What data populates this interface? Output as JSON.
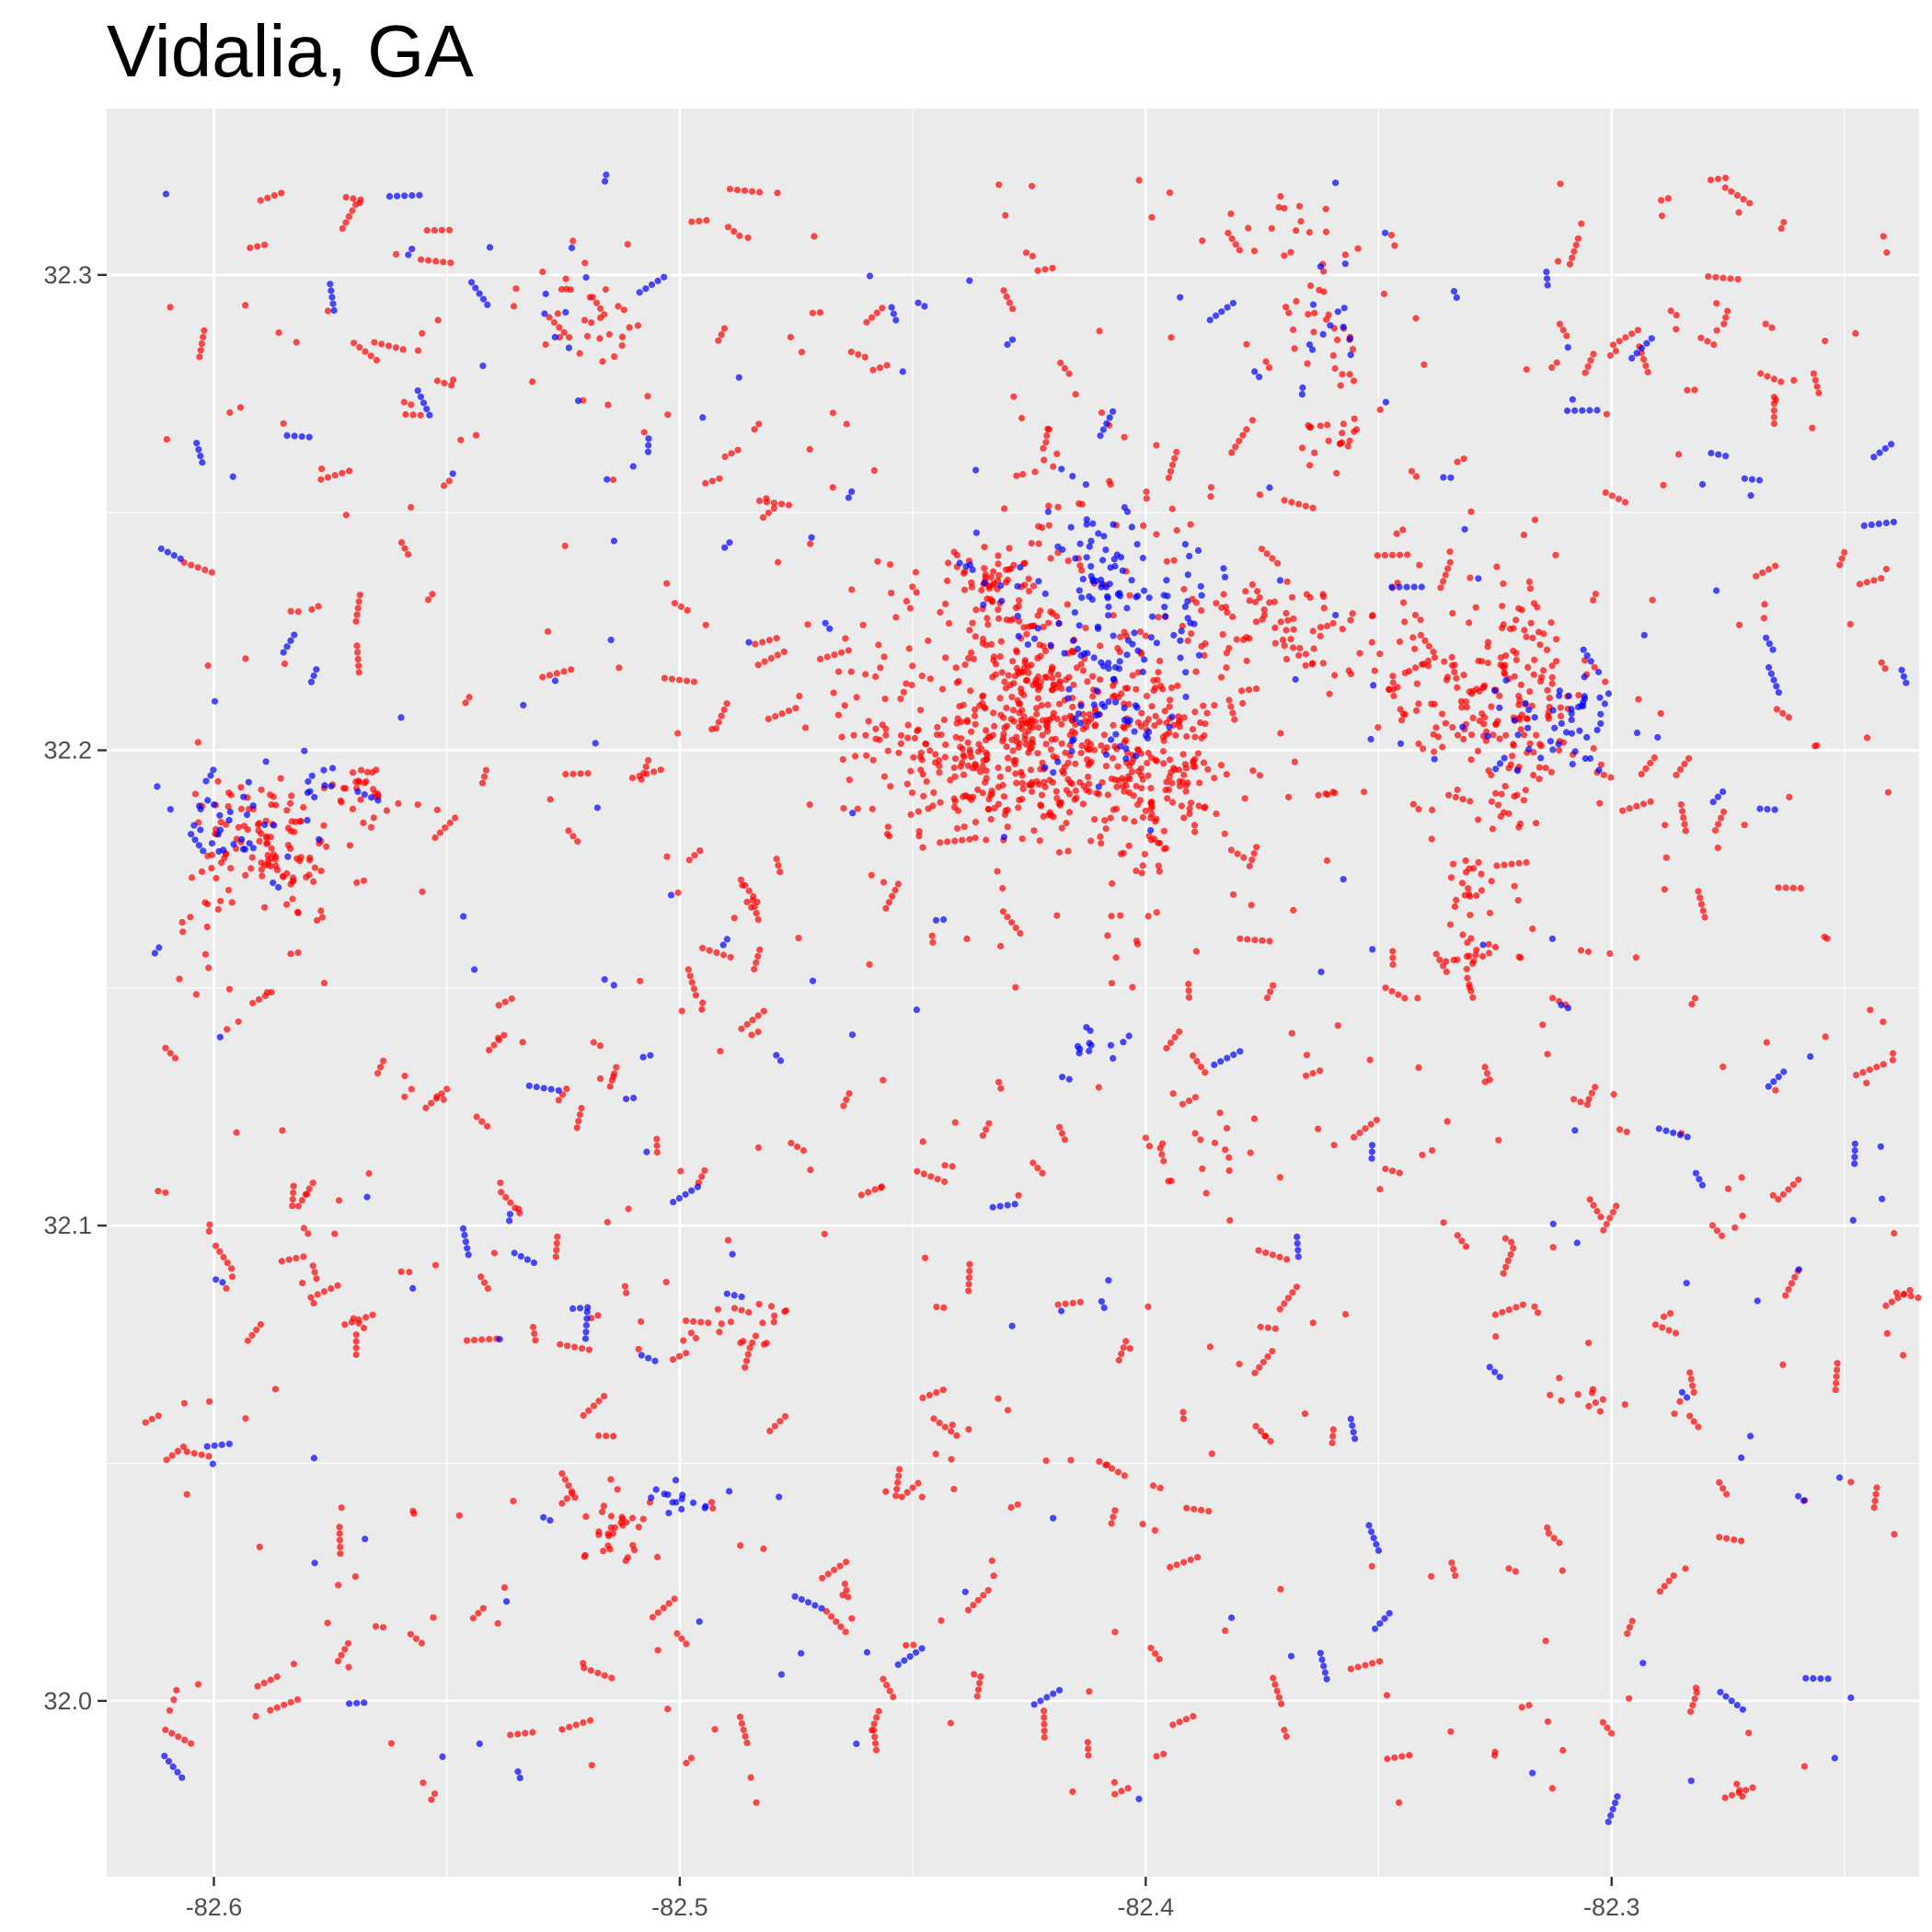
{
  "chart_data": {
    "type": "scatter",
    "title": "Vidalia, GA",
    "xlabel": "",
    "ylabel": "",
    "xlim": [
      -82.623,
      -82.234
    ],
    "ylim": [
      31.963,
      32.335
    ],
    "x_ticks": [
      -82.6,
      -82.5,
      -82.4,
      -82.3
    ],
    "x_tick_labels": [
      "-82.6",
      "-82.5",
      "-82.4",
      "-82.3"
    ],
    "y_ticks": [
      32.0,
      32.1,
      32.2,
      32.3
    ],
    "y_tick_labels": [
      "32.0",
      "32.1",
      "32.2",
      "32.3"
    ],
    "grid": true,
    "legend": "none",
    "colors": {
      "panel_background": "#ebebeb",
      "grid_major": "#ffffff",
      "tick_text": "#4d4d4d",
      "red_points": "#ff0000",
      "blue_points": "#0000ff"
    },
    "series": [
      {
        "color": "#ff0000",
        "clusters": [
          {
            "x": -82.418,
            "y": 32.203,
            "sx": 0.011,
            "sy": 0.01,
            "n": 260
          },
          {
            "x": -82.397,
            "y": 32.196,
            "sx": 0.007,
            "sy": 0.011,
            "n": 150
          },
          {
            "x": -82.435,
            "y": 32.198,
            "sx": 0.008,
            "sy": 0.008,
            "n": 130
          },
          {
            "x": -82.432,
            "y": 32.234,
            "sx": 0.007,
            "sy": 0.005,
            "n": 70
          },
          {
            "x": -82.427,
            "y": 32.22,
            "sx": 0.006,
            "sy": 0.005,
            "n": 50
          },
          {
            "x": -82.455,
            "y": 32.205,
            "sx": 0.006,
            "sy": 0.01,
            "n": 50
          },
          {
            "x": -82.41,
            "y": 32.247,
            "sx": 0.012,
            "sy": 0.012,
            "n": 40
          },
          {
            "x": -82.37,
            "y": 32.225,
            "sx": 0.016,
            "sy": 0.005,
            "n": 85
          },
          {
            "x": -82.325,
            "y": 32.21,
            "sx": 0.012,
            "sy": 0.007,
            "n": 130
          },
          {
            "x": -82.322,
            "y": 32.223,
            "sx": 0.004,
            "sy": 0.008,
            "n": 40
          },
          {
            "x": -82.322,
            "y": 32.193,
            "sx": 0.006,
            "sy": 0.006,
            "n": 30
          },
          {
            "x": -82.588,
            "y": 32.18,
            "sx": 0.006,
            "sy": 0.006,
            "n": 90
          },
          {
            "x": -82.6,
            "y": 32.178,
            "sx": 0.003,
            "sy": 0.012,
            "n": 30
          },
          {
            "x": -82.568,
            "y": 32.19,
            "sx": 0.005,
            "sy": 0.005,
            "n": 30
          },
          {
            "x": -82.513,
            "y": 32.036,
            "sx": 0.004,
            "sy": 0.004,
            "n": 30
          },
          {
            "x": -82.483,
            "y": 32.079,
            "sx": 0.004,
            "sy": 0.003,
            "n": 15
          },
          {
            "x": -82.33,
            "y": 32.171,
            "sx": 0.003,
            "sy": 0.004,
            "n": 20
          },
          {
            "x": -82.33,
            "y": 32.157,
            "sx": 0.004,
            "sy": 0.003,
            "n": 18
          },
          {
            "x": -82.363,
            "y": 32.29,
            "sx": 0.004,
            "sy": 0.006,
            "n": 25
          },
          {
            "x": -82.36,
            "y": 32.265,
            "sx": 0.004,
            "sy": 0.004,
            "n": 20
          },
          {
            "x": -82.37,
            "y": 32.31,
            "sx": 0.006,
            "sy": 0.005,
            "n": 18
          },
          {
            "x": -82.52,
            "y": 32.29,
            "sx": 0.005,
            "sy": 0.008,
            "n": 30
          },
          {
            "x": -82.45,
            "y": 32.22,
            "sx": 0.015,
            "sy": 0.02,
            "n": 30
          },
          {
            "x": -82.385,
            "y": 32.116,
            "sx": 0.005,
            "sy": 0.005,
            "n": 15
          },
          {
            "x": -82.305,
            "y": 32.063,
            "sx": 0.003,
            "sy": 0.002,
            "n": 10
          },
          {
            "x": -82.405,
            "y": 32.16,
            "sx": 0.004,
            "sy": 0.005,
            "n": 10
          }
        ],
        "background": {
          "n": 1500,
          "xlim": [
            -82.612,
            -82.237
          ],
          "ylim": [
            31.978,
            32.32
          ]
        }
      },
      {
        "color": "#0000ff",
        "clusters": [
          {
            "x": -82.41,
            "y": 32.225,
            "sx": 0.008,
            "sy": 0.012,
            "n": 90
          },
          {
            "x": -82.395,
            "y": 32.23,
            "sx": 0.005,
            "sy": 0.006,
            "n": 25
          },
          {
            "x": -82.405,
            "y": 32.207,
            "sx": 0.006,
            "sy": 0.005,
            "n": 25
          },
          {
            "x": -82.41,
            "y": 32.242,
            "sx": 0.004,
            "sy": 0.004,
            "n": 20
          },
          {
            "x": -82.31,
            "y": 32.207,
            "sx": 0.008,
            "sy": 0.005,
            "n": 50
          },
          {
            "x": -82.596,
            "y": 32.185,
            "sx": 0.006,
            "sy": 0.005,
            "n": 30
          },
          {
            "x": -82.582,
            "y": 32.195,
            "sx": 0.004,
            "sy": 0.003,
            "n": 12
          },
          {
            "x": -82.5,
            "y": 32.043,
            "sx": 0.003,
            "sy": 0.002,
            "n": 14
          },
          {
            "x": -82.41,
            "y": 32.138,
            "sx": 0.004,
            "sy": 0.002,
            "n": 12
          },
          {
            "x": -82.36,
            "y": 32.29,
            "sx": 0.004,
            "sy": 0.006,
            "n": 12
          },
          {
            "x": -82.524,
            "y": 32.289,
            "sx": 0.003,
            "sy": 0.006,
            "n": 8
          },
          {
            "x": -82.432,
            "y": 32.234,
            "sx": 0.004,
            "sy": 0.003,
            "n": 8
          }
        ],
        "background": {
          "n": 420,
          "xlim": [
            -82.612,
            -82.237
          ],
          "ylim": [
            31.978,
            32.32
          ]
        }
      }
    ]
  }
}
